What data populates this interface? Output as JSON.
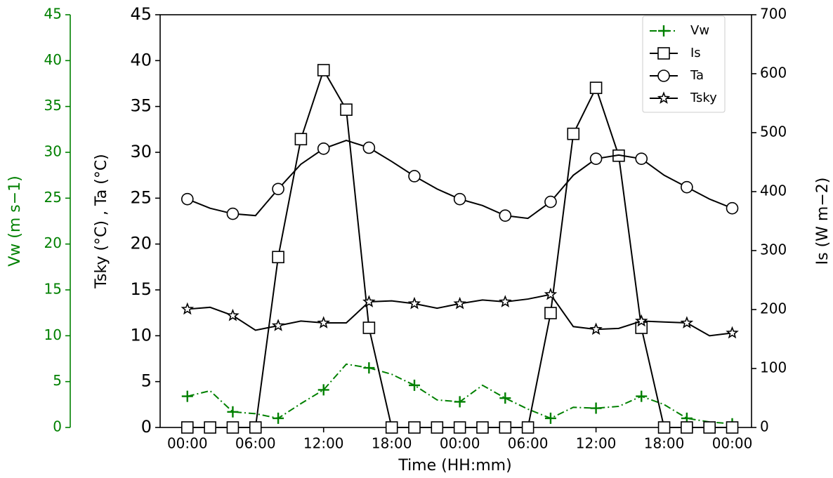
{
  "chart_data": {
    "type": "line",
    "xlabel": "Time (HH:mm)",
    "ylabel": "Tsky (°C) , Ta (°C)",
    "y2label": "Is (W m−2)",
    "y3label": "Vw (m s−1)",
    "y3color": "#008000",
    "legend": "upper right",
    "x": [
      0,
      2,
      4,
      6,
      8,
      10,
      12,
      14,
      16,
      18,
      20,
      22,
      24,
      26,
      28,
      30,
      32,
      34,
      36,
      38,
      40,
      42,
      44,
      46,
      48
    ],
    "xlim": [
      -2.4,
      49.7
    ],
    "xticks": [
      {
        "value": 0,
        "label": "00:00"
      },
      {
        "value": 6,
        "label": "06:00"
      },
      {
        "value": 12,
        "label": "12:00"
      },
      {
        "value": 18,
        "label": "18:00"
      },
      {
        "value": 24,
        "label": "00:00"
      },
      {
        "value": 30,
        "label": "06:00"
      },
      {
        "value": 36,
        "label": "12:00"
      },
      {
        "value": 42,
        "label": "18:00"
      },
      {
        "value": 48,
        "label": "00:00"
      }
    ],
    "ylim": [
      0,
      45
    ],
    "yticks": [
      0,
      5,
      10,
      15,
      20,
      25,
      30,
      35,
      40,
      45
    ],
    "y2lim": [
      0,
      700
    ],
    "y2ticks": [
      0,
      100,
      200,
      300,
      400,
      500,
      600,
      700
    ],
    "y3lim": [
      0,
      45
    ],
    "y3ticks": [
      0,
      5,
      10,
      15,
      20,
      25,
      30,
      35,
      40,
      45
    ],
    "series": [
      {
        "name": "Vw",
        "color": "#008000",
        "axis": "y3",
        "marker": "plus",
        "dash": "dashdot",
        "markevery": 2,
        "values": [
          3.4,
          4.0,
          1.7,
          1.5,
          1.0,
          2.6,
          4.1,
          6.9,
          6.5,
          5.8,
          4.6,
          3.0,
          2.8,
          4.6,
          3.2,
          2.0,
          1.0,
          2.2,
          2.1,
          2.3,
          3.4,
          2.5,
          1.0,
          0.6,
          0.4
        ]
      },
      {
        "name": "Is",
        "color": "#000000",
        "axis": "y2",
        "marker": "square",
        "dash": "solid",
        "markevery": 1,
        "values": [
          0,
          0,
          0,
          0,
          289,
          489,
          606,
          539,
          169,
          0,
          0,
          0,
          0,
          0,
          0,
          0,
          194,
          498,
          576,
          461,
          169,
          0,
          0,
          0,
          0
        ]
      },
      {
        "name": "Ta",
        "color": "#000000",
        "axis": "y",
        "marker": "circle",
        "dash": "solid",
        "markevery": 2,
        "values": [
          24.9,
          23.9,
          23.3,
          23.1,
          26.0,
          28.7,
          30.4,
          31.3,
          30.5,
          29.0,
          27.4,
          26.0,
          24.9,
          24.2,
          23.1,
          22.8,
          24.6,
          27.5,
          29.3,
          29.7,
          29.3,
          27.5,
          26.2,
          24.9,
          23.9
        ]
      },
      {
        "name": "Tsky",
        "color": "#000000",
        "axis": "y",
        "marker": "star",
        "dash": "solid",
        "markevery": 2,
        "values": [
          12.9,
          13.1,
          12.2,
          10.6,
          11.1,
          11.6,
          11.4,
          11.4,
          13.7,
          13.8,
          13.5,
          13.0,
          13.5,
          13.9,
          13.7,
          14.0,
          14.5,
          11.0,
          10.7,
          10.8,
          11.6,
          11.5,
          11.4,
          10.0,
          10.3
        ]
      }
    ]
  }
}
